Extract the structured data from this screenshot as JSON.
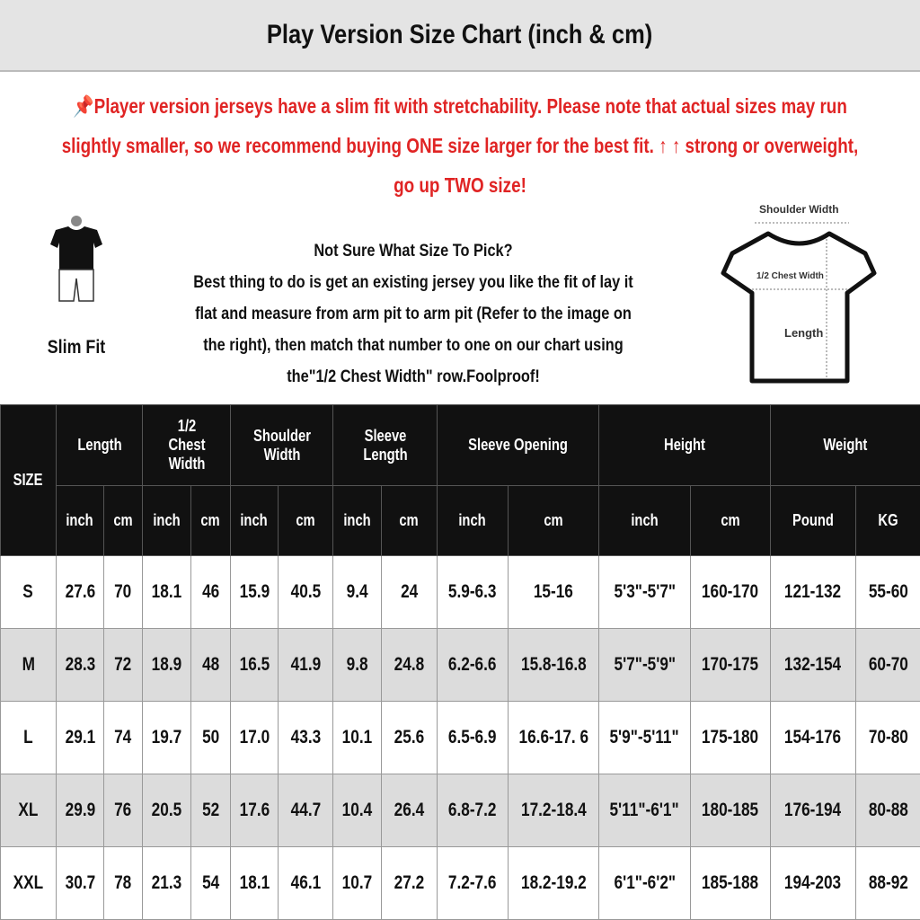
{
  "title": "Play Version Size Chart (inch & cm)",
  "notice": {
    "icon": "pushpin-icon",
    "line1": "Player version jerseys have a slim fit with stretchability. Please note that actual sizes may run",
    "line2": "slightly smaller, so we recommend buying ONE size larger for the best fit. ↑ ↑ strong or overweight,",
    "line3": "go up TWO size!",
    "color": "#e02424"
  },
  "help": {
    "heading": "Not Sure What Size To Pick?",
    "line1": "Best thing to do is get an existing jersey you like the fit of lay it",
    "line2": "flat and measure from arm pit to arm pit (Refer to the image on",
    "line3": "the right), then match that number to one on our chart using",
    "line4": "the\"1/2 Chest Width\" row.Foolproof!"
  },
  "slim_fit": {
    "label": "Slim Fit"
  },
  "diagram": {
    "shoulder": "Shoulder Width",
    "chest": "1/2 Chest Width",
    "length": "Length"
  },
  "table": {
    "size_header": "SIZE",
    "groups": [
      "Length",
      "1/2 Chest Width",
      "Shoulder Width",
      "Sleeve Length",
      "Sleeve Opening",
      "Height",
      "Weight"
    ],
    "units": [
      "inch",
      "cm",
      "inch",
      "cm",
      "inch",
      "cm",
      "inch",
      "cm",
      "inch",
      "cm",
      "inch",
      "cm",
      "Pound",
      "KG"
    ],
    "rows": [
      [
        "S",
        "27.6",
        "70",
        "18.1",
        "46",
        "15.9",
        "40.5",
        "9.4",
        "24",
        "5.9-6.3",
        "15-16",
        "5'3\"-5'7\"",
        "160-170",
        "121-132",
        "55-60"
      ],
      [
        "M",
        "28.3",
        "72",
        "18.9",
        "48",
        "16.5",
        "41.9",
        "9.8",
        "24.8",
        "6.2-6.6",
        "15.8-16.8",
        "5'7\"-5'9\"",
        "170-175",
        "132-154",
        "60-70"
      ],
      [
        "L",
        "29.1",
        "74",
        "19.7",
        "50",
        "17.0",
        "43.3",
        "10.1",
        "25.6",
        "6.5-6.9",
        "16.6-17. 6",
        "5'9\"-5'11\"",
        "175-180",
        "154-176",
        "70-80"
      ],
      [
        "XL",
        "29.9",
        "76",
        "20.5",
        "52",
        "17.6",
        "44.7",
        "10.4",
        "26.4",
        "6.8-7.2",
        "17.2-18.4",
        "5'11\"-6'1\"",
        "180-185",
        "176-194",
        "80-88"
      ],
      [
        "XXL",
        "30.7",
        "78",
        "21.3",
        "54",
        "18.1",
        "46.1",
        "10.7",
        "27.2",
        "7.2-7.6",
        "18.2-19.2",
        "6'1\"-6'2\"",
        "185-188",
        "194-203",
        "88-92"
      ]
    ]
  }
}
